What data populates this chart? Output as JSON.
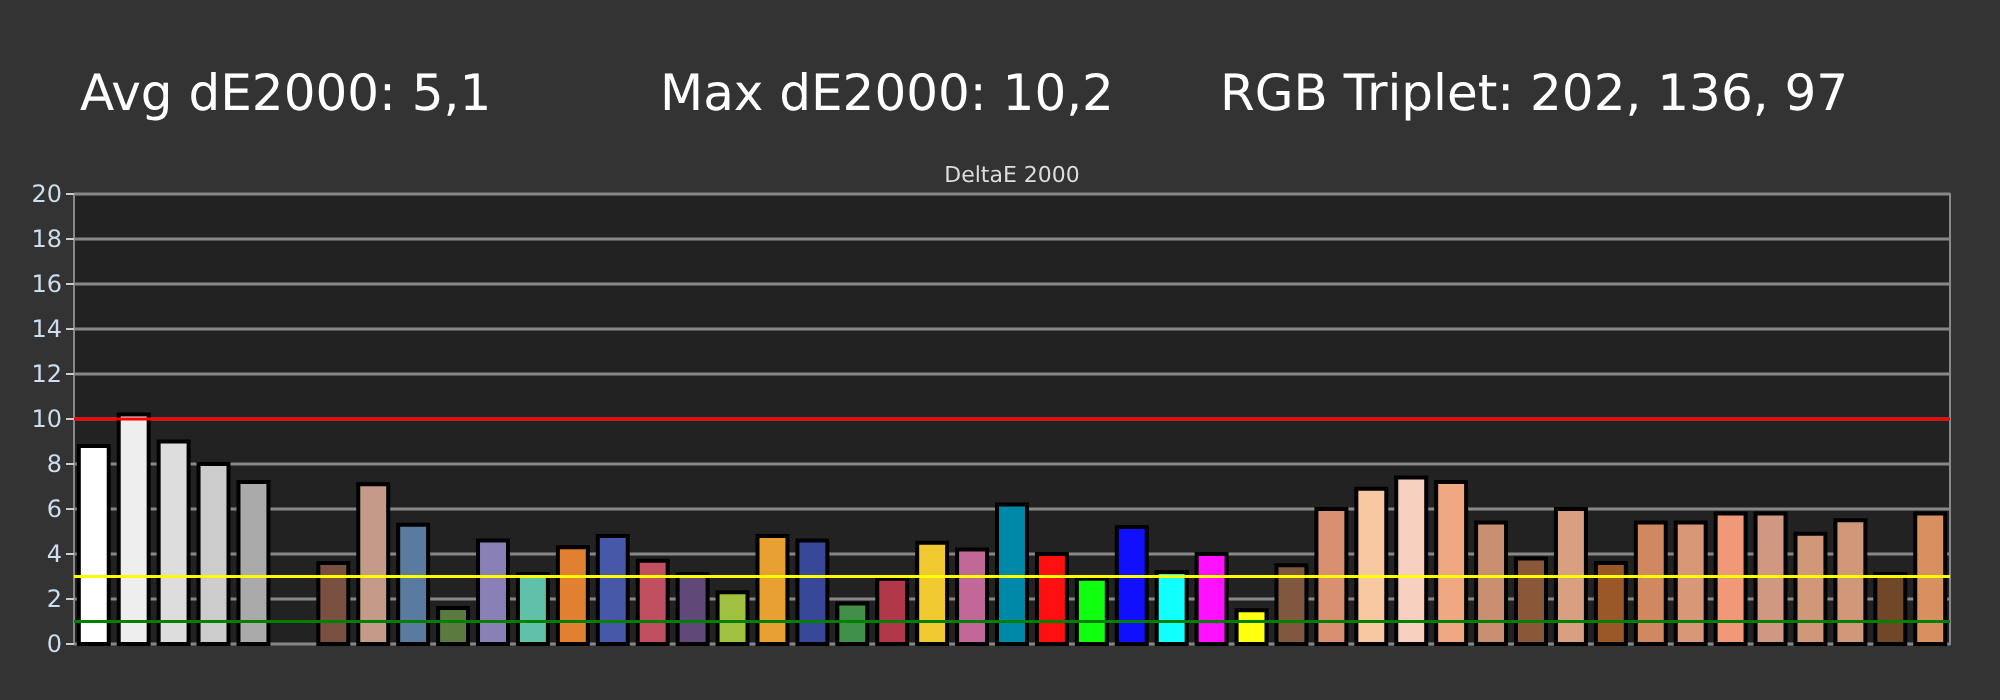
{
  "chart_data": {
    "type": "bar",
    "title": "DeltaE 2000",
    "annotations": [
      "Avg dE2000: 5,1",
      "Max dE2000: 10,2",
      "RGB Triplet: 202, 136, 97"
    ],
    "categories": [
      null,
      null,
      null,
      null,
      null,
      null,
      null,
      null,
      null,
      null,
      null,
      null,
      null,
      null,
      null,
      null,
      null,
      null,
      null,
      null,
      null,
      null,
      null,
      null,
      null,
      null,
      null,
      null,
      null,
      null,
      null,
      null,
      null,
      null,
      null,
      null,
      null,
      null,
      null,
      null,
      null,
      null,
      null,
      null,
      null,
      null,
      null
    ],
    "values": [
      8.8,
      10.2,
      9.0,
      8.0,
      7.2,
      null,
      3.6,
      7.1,
      5.3,
      1.6,
      4.6,
      3.1,
      4.3,
      4.8,
      3.7,
      3.1,
      2.3,
      4.8,
      4.6,
      1.8,
      2.9,
      4.5,
      4.2,
      6.2,
      4.0,
      2.9,
      5.2,
      3.2,
      4.0,
      1.5,
      3.5,
      6.0,
      6.9,
      7.4,
      7.2,
      5.4,
      3.8,
      6.0,
      3.6,
      5.4,
      5.4,
      5.8,
      5.8,
      4.9,
      5.5,
      3.1,
      5.8
    ],
    "colors": [
      "#ffffff",
      "#eeeeee",
      "#dddddd",
      "#cccccc",
      "#aaaaaa",
      null,
      "#7a5040",
      "#c49a88",
      "#5a7aa0",
      "#5a7a40",
      "#8a80b8",
      "#60c0a8",
      "#e08030",
      "#4858a8",
      "#c05060",
      "#604878",
      "#a0c040",
      "#e8a030",
      "#384898",
      "#409048",
      "#b03848",
      "#f0c830",
      "#c06898",
      "#0088a8",
      "#ff1010",
      "#10ff10",
      "#1010ff",
      "#10ffff",
      "#ff10ff",
      "#ffff10",
      "#805840",
      "#d89070",
      "#f8c8a0",
      "#f8d0c0",
      "#f0a880",
      "#c89070",
      "#8a5838",
      "#d8a080",
      "#9a5828",
      "#d08860",
      "#d89878",
      "#f09878",
      "#d09880",
      "#d09878",
      "#d09878",
      "#704828",
      "#d89060"
    ],
    "ylim": [
      0,
      20
    ],
    "yticks": [
      0,
      2,
      4,
      6,
      8,
      10,
      12,
      14,
      16,
      18,
      20
    ],
    "grid": "y",
    "ref_lines": [
      {
        "axis": "y",
        "value": 10,
        "color": "#ff0000"
      },
      {
        "axis": "y",
        "value": 3,
        "color": "#ffff00"
      },
      {
        "axis": "y",
        "value": 1,
        "color": "#008000"
      }
    ]
  }
}
